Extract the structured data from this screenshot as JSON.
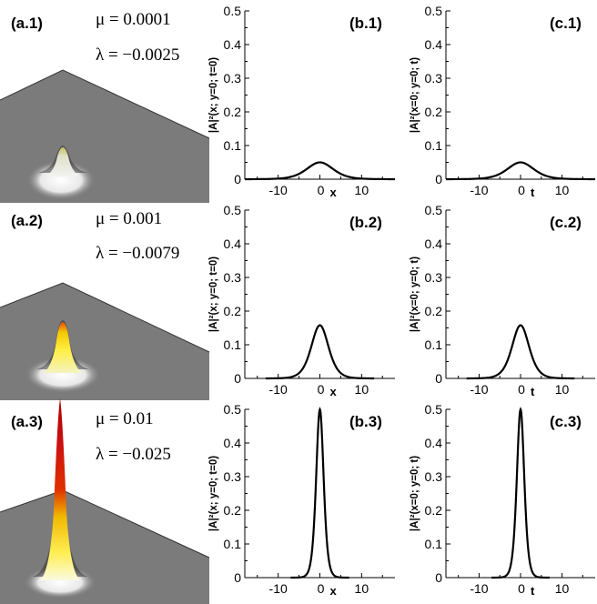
{
  "rows": [
    {
      "surface_label": "(a.1)",
      "mu_text": "μ = 0.0001",
      "lambda_text": "λ = −0.0025",
      "peak_height": 0.05
    },
    {
      "surface_label": "(a.2)",
      "mu_text": "μ = 0.001",
      "lambda_text": "λ = −0.0079",
      "peak_height": 0.158
    },
    {
      "surface_label": "(a.3)",
      "mu_text": "μ = 0.01",
      "lambda_text": "λ = −0.025",
      "peak_height": 0.5
    }
  ],
  "chart_data": [
    {
      "panel": "(b.1)",
      "type": "line",
      "ylabel": "|A|²(x; y=0; t=0)",
      "xlabel": "x",
      "xlim": [
        -18,
        18
      ],
      "ylim": [
        0,
        0.5
      ],
      "xticks": [
        "-10",
        "0",
        "10"
      ],
      "yticks": [
        "0",
        "0.1",
        "0.2",
        "0.3",
        "0.4",
        "0.5"
      ],
      "series": [
        {
          "x": [
            -18,
            -10,
            -5,
            -3,
            0,
            3,
            5,
            10,
            18
          ],
          "y": [
            0.0,
            0.003,
            0.016,
            0.029,
            0.05,
            0.029,
            0.016,
            0.003,
            0.0
          ]
        }
      ]
    },
    {
      "panel": "(c.1)",
      "type": "line",
      "ylabel": "|A|²(x=0; y=0; t)",
      "xlabel": "t",
      "xlim": [
        -18,
        18
      ],
      "ylim": [
        0,
        0.5
      ],
      "xticks": [
        "-10",
        "0",
        "10"
      ],
      "yticks": [
        "0",
        "0.1",
        "0.2",
        "0.3",
        "0.4",
        "0.5"
      ],
      "series": [
        {
          "x": [
            -18,
            -10,
            -5,
            -3,
            0,
            3,
            5,
            10,
            18
          ],
          "y": [
            0.0,
            0.003,
            0.016,
            0.029,
            0.05,
            0.029,
            0.016,
            0.003,
            0.0
          ]
        }
      ]
    },
    {
      "panel": "(b.2)",
      "type": "line",
      "ylabel": "|A|²(x; y=0; t=0)",
      "xlabel": "x",
      "xlim": [
        -18,
        18
      ],
      "ylim": [
        0,
        0.5
      ],
      "xticks": [
        "-10",
        "0",
        "10"
      ],
      "yticks": [
        "0",
        "0.1",
        "0.2",
        "0.3",
        "0.4",
        "0.5"
      ],
      "series": [
        {
          "x": [
            -13,
            -8,
            -5,
            -3,
            -1.5,
            0,
            1.5,
            3,
            5,
            8,
            13
          ],
          "y": [
            0.0,
            0.004,
            0.02,
            0.058,
            0.11,
            0.158,
            0.11,
            0.058,
            0.02,
            0.004,
            0.0
          ]
        }
      ]
    },
    {
      "panel": "(c.2)",
      "type": "line",
      "ylabel": "|A|²(x=0; y=0; t)",
      "xlabel": "t",
      "xlim": [
        -18,
        18
      ],
      "ylim": [
        0,
        0.5
      ],
      "xticks": [
        "-10",
        "0",
        "10"
      ],
      "yticks": [
        "0",
        "0.1",
        "0.2",
        "0.3",
        "0.4",
        "0.5"
      ],
      "series": [
        {
          "x": [
            -13,
            -8,
            -5,
            -3,
            -1.5,
            0,
            1.5,
            3,
            5,
            8,
            13
          ],
          "y": [
            0.0,
            0.004,
            0.02,
            0.058,
            0.11,
            0.158,
            0.11,
            0.058,
            0.02,
            0.004,
            0.0
          ]
        }
      ]
    },
    {
      "panel": "(b.3)",
      "type": "line",
      "ylabel": "|A|²(x; y=0; t=0)",
      "xlabel": "x",
      "xlim": [
        -18,
        18
      ],
      "ylim": [
        0,
        0.5
      ],
      "xticks": [
        "-10",
        "0",
        "10"
      ],
      "yticks": [
        "0",
        "0.1",
        "0.2",
        "0.3",
        "0.4",
        "0.5"
      ],
      "series": [
        {
          "x": [
            -7,
            -4,
            -2.5,
            -1.5,
            -0.8,
            0,
            0.8,
            1.5,
            2.5,
            4,
            7
          ],
          "y": [
            0.0,
            0.006,
            0.04,
            0.14,
            0.32,
            0.5,
            0.32,
            0.14,
            0.04,
            0.006,
            0.0
          ]
        }
      ]
    },
    {
      "panel": "(c.3)",
      "type": "line",
      "ylabel": "|A|²(x=0; y=0; t)",
      "xlabel": "t",
      "xlim": [
        -18,
        18
      ],
      "ylim": [
        0,
        0.5
      ],
      "xticks": [
        "-10",
        "0",
        "10"
      ],
      "yticks": [
        "0",
        "0.1",
        "0.2",
        "0.3",
        "0.4",
        "0.5"
      ],
      "series": [
        {
          "x": [
            -7,
            -4,
            -2.5,
            -1.5,
            -0.8,
            0,
            0.8,
            1.5,
            2.5,
            4,
            7
          ],
          "y": [
            0.0,
            0.006,
            0.04,
            0.14,
            0.32,
            0.5,
            0.32,
            0.14,
            0.04,
            0.006,
            0.0
          ]
        }
      ]
    }
  ]
}
